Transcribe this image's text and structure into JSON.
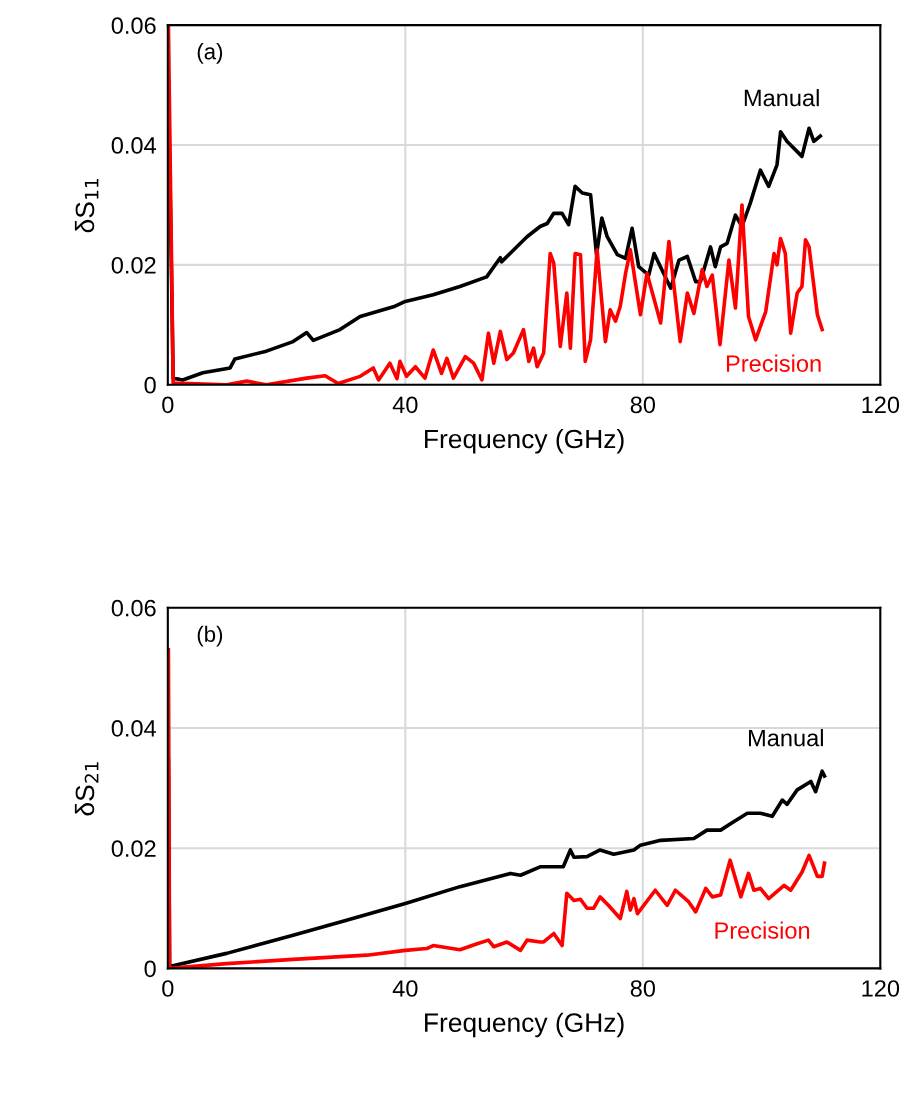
{
  "chart_data": [
    {
      "type": "line",
      "xlabel": "Frequency (GHz)",
      "ylabel": "δS$_{11}$",
      "xlim": [
        0,
        120
      ],
      "xticks": [
        0,
        40,
        80,
        120
      ],
      "ylim": [
        0,
        0.06
      ],
      "yticks": [
        {
          "value": 0,
          "label": "0"
        },
        0.02,
        0.04,
        0.06
      ],
      "grid": true,
      "annotations": [
        "(a)"
      ],
      "series": [
        {
          "name": "Manual",
          "color": "#000000",
          "x": [
            0.1,
            0.9,
            2.5,
            5.9,
            10.5,
            11.3,
            16.6,
            21.1,
            23.4,
            24.5,
            29,
            32.4,
            38,
            40,
            44.7,
            49.2,
            53.7,
            56,
            56.2,
            60.5,
            62.7,
            63.9,
            65,
            66.4,
            67.5,
            68.6,
            69.8,
            71.2,
            72.2,
            73.1,
            74,
            75.7,
            77.1,
            78.2,
            79.3,
            81,
            81.9,
            84.7,
            86.1,
            87.5,
            88.9,
            89.7,
            91.4,
            92.2,
            93.1,
            94.2,
            95.6,
            96.7,
            98.1,
            99.8,
            101.2,
            102.6,
            103.2,
            104.3,
            106.8,
            108,
            108.8,
            109.9
          ],
          "values": [
            0.05,
            0.0011,
            0.0008,
            0.002,
            0.0028,
            0.0043,
            0.0056,
            0.0072,
            0.0087,
            0.0074,
            0.0092,
            0.0114,
            0.013,
            0.0139,
            0.015,
            0.0164,
            0.018,
            0.0212,
            0.0205,
            0.0247,
            0.0264,
            0.0269,
            0.0286,
            0.0286,
            0.0267,
            0.0331,
            0.032,
            0.0317,
            0.0217,
            0.0278,
            0.0247,
            0.0217,
            0.0211,
            0.0261,
            0.0197,
            0.0183,
            0.0219,
            0.0161,
            0.0208,
            0.0214,
            0.0172,
            0.0172,
            0.023,
            0.0197,
            0.023,
            0.0236,
            0.0283,
            0.0264,
            0.0303,
            0.0358,
            0.0331,
            0.0367,
            0.0422,
            0.0406,
            0.0381,
            0.0428,
            0.0406,
            0.0415
          ]
        },
        {
          "name": "Precision",
          "color": "#ff0000",
          "x": [
            0.1,
            0.9,
            9.9,
            13.3,
            16.6,
            23.4,
            26.5,
            28.7,
            32.4,
            34.6,
            35.5,
            37.4,
            38.6,
            39.1,
            40.2,
            41.7,
            43.3,
            44.7,
            46.1,
            47,
            48.1,
            50.1,
            51.5,
            52.9,
            54,
            54.9,
            56,
            57.1,
            58.2,
            59.9,
            60.8,
            61.6,
            62.2,
            63.3,
            64.4,
            65,
            66.1,
            67.2,
            67.8,
            68.6,
            69.5,
            70.3,
            71.2,
            72.3,
            73.7,
            74.5,
            75.4,
            76.2,
            77.1,
            77.9,
            79.6,
            80.7,
            83,
            84.4,
            86.3,
            87.5,
            88.6,
            90,
            90.8,
            91.7,
            93,
            94.5,
            95.6,
            96.7,
            97.8,
            99,
            100.7,
            102.1,
            102.6,
            103.2,
            104,
            104.9,
            106,
            106.8,
            107.4,
            108,
            109.4,
            110.2
          ],
          "values": [
            0.06,
            0.0003,
            0,
            0.0006,
            0,
            0.0011,
            0.0015,
            0.0002,
            0.0014,
            0.0028,
            0.0008,
            0.0036,
            0.001,
            0.0039,
            0.0014,
            0.003,
            0.0011,
            0.0058,
            0.0019,
            0.0044,
            0.0011,
            0.0047,
            0.0036,
            0.0008,
            0.0086,
            0.0036,
            0.0089,
            0.0042,
            0.0053,
            0.0092,
            0.0039,
            0.0061,
            0.003,
            0.0053,
            0.0219,
            0.0203,
            0.0064,
            0.0153,
            0.0061,
            0.0219,
            0.0217,
            0.0039,
            0.0075,
            0.0225,
            0.0072,
            0.0125,
            0.0106,
            0.0131,
            0.0186,
            0.0225,
            0.0117,
            0.0186,
            0.0103,
            0.0239,
            0.0072,
            0.0153,
            0.0119,
            0.0192,
            0.0164,
            0.0183,
            0.0067,
            0.0208,
            0.0128,
            0.03,
            0.0114,
            0.0075,
            0.0122,
            0.0219,
            0.02,
            0.0244,
            0.0219,
            0.0086,
            0.0153,
            0.0164,
            0.0242,
            0.023,
            0.0117,
            0.0092
          ]
        }
      ]
    },
    {
      "type": "line",
      "xlabel": "Frequency (GHz)",
      "ylabel": "δS$_{21}$",
      "xlim": [
        0,
        120
      ],
      "xticks": [
        0,
        40,
        80,
        120
      ],
      "ylim": [
        0,
        0.06
      ],
      "yticks": [
        {
          "value": 0,
          "label": "0"
        },
        0.02,
        0.04,
        0.06
      ],
      "grid": true,
      "annotations": [
        "(b)"
      ],
      "series": [
        {
          "name": "Manual",
          "color": "#000000",
          "x": [
            0.1,
            0.3,
            9.9,
            21.1,
            30.1,
            40,
            49.2,
            57.7,
            59.4,
            62.7,
            66.6,
            67.8,
            68.4,
            70.6,
            72.8,
            75.1,
            78.5,
            79.6,
            83,
            88.6,
            90.8,
            93.1,
            95.3,
            97.6,
            99.8,
            101.8,
            103.5,
            104.3,
            106,
            108.3,
            109.1,
            110.2,
            110.6
          ],
          "values": [
            0.0347,
            0.0003,
            0.0025,
            0.0055,
            0.008,
            0.0108,
            0.0136,
            0.0158,
            0.0155,
            0.0169,
            0.0169,
            0.0197,
            0.0185,
            0.0186,
            0.0197,
            0.019,
            0.0197,
            0.0205,
            0.0213,
            0.0216,
            0.023,
            0.023,
            0.0244,
            0.0258,
            0.0258,
            0.0253,
            0.028,
            0.0273,
            0.0297,
            0.0311,
            0.0294,
            0.0328,
            0.032
          ]
        },
        {
          "name": "Precision",
          "color": "#ff0000",
          "x": [
            0.1,
            0.3,
            9.9,
            21.1,
            33.5,
            40,
            43.6,
            44.7,
            49.2,
            52.1,
            54,
            54.9,
            57.1,
            59.4,
            60.5,
            62.7,
            63.3,
            65,
            66.4,
            67.2,
            68.4,
            69.5,
            70.6,
            71.7,
            72.8,
            74.2,
            76.2,
            77.3,
            77.9,
            78.5,
            79.1,
            82.1,
            84.1,
            85.5,
            87.7,
            88.9,
            90.6,
            91.7,
            93.1,
            94.7,
            96.5,
            97.8,
            98.7,
            99.8,
            101.2,
            103.8,
            104.9,
            106.8,
            108,
            109.4,
            110.2,
            110.6
          ],
          "values": [
            0.053,
            0,
            0.0008,
            0.0015,
            0.0022,
            0.003,
            0.0033,
            0.0038,
            0.0031,
            0.0041,
            0.0047,
            0.0036,
            0.0044,
            0.003,
            0.0047,
            0.0044,
            0.0044,
            0.0058,
            0.0038,
            0.0125,
            0.0113,
            0.0115,
            0.01,
            0.01,
            0.0119,
            0.0105,
            0.0083,
            0.0128,
            0.0097,
            0.0116,
            0.0091,
            0.013,
            0.0105,
            0.013,
            0.0111,
            0.0094,
            0.0133,
            0.0119,
            0.0122,
            0.018,
            0.0119,
            0.0158,
            0.013,
            0.0133,
            0.0116,
            0.0138,
            0.013,
            0.016,
            0.0188,
            0.0153,
            0.0153,
            0.0175
          ]
        }
      ]
    }
  ]
}
